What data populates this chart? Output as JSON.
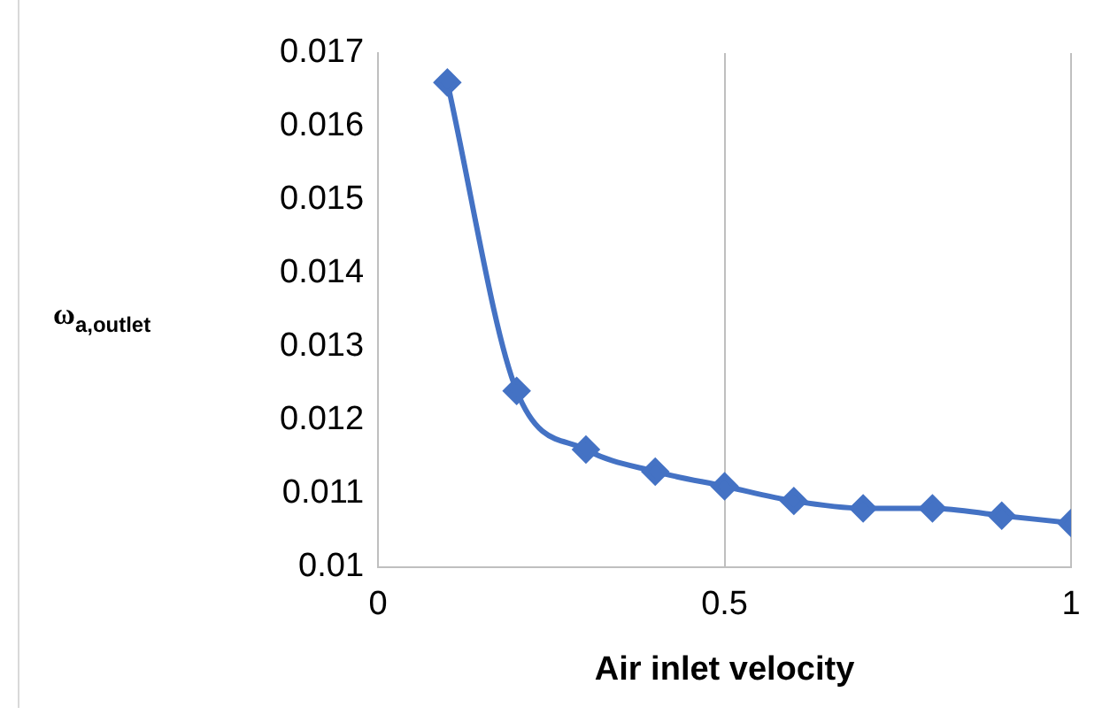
{
  "chart_data": {
    "type": "line",
    "xlabel": "Air inlet velocity",
    "ylabel": "ω$_{a,outlet}$",
    "x": [
      0.1,
      0.2,
      0.3,
      0.4,
      0.5,
      0.6,
      0.7,
      0.8,
      0.9,
      1.0
    ],
    "series": [
      {
        "color": "#4472c4",
        "values": [
          0.0166,
          0.0124,
          0.0116,
          0.0113,
          0.0111,
          0.0109,
          0.0108,
          0.0108,
          0.0107,
          0.0106
        ]
      }
    ],
    "xlim": [
      0,
      1
    ],
    "xticks": [
      0,
      0.5,
      1
    ],
    "ylim": [
      0.01,
      0.017
    ],
    "yticks": [
      0.01,
      0.011,
      0.012,
      0.013,
      0.014,
      0.015,
      0.016,
      0.017
    ],
    "grid": "x",
    "legend": false,
    "marker": "diamond",
    "line_style": "solid"
  }
}
